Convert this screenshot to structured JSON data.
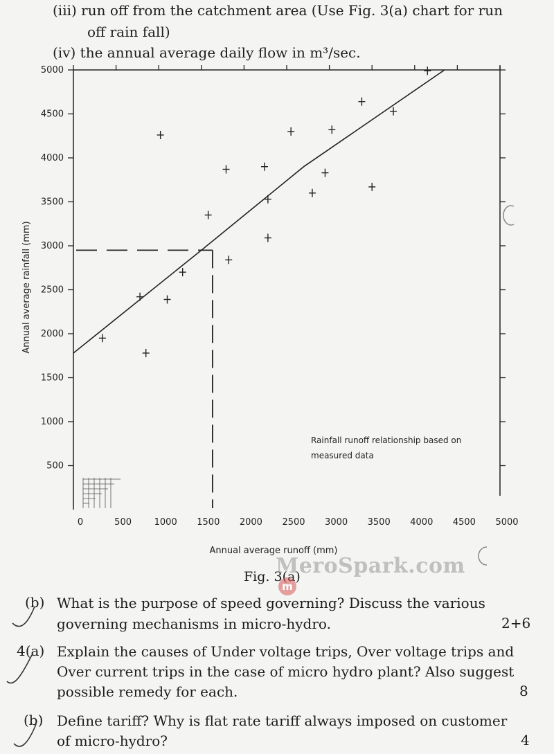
{
  "questions_top": {
    "item_iii_line1": "(iii) run off from the catchment area (Use Fig. 3(a) chart for run",
    "item_iii_line2": "off rain fall)",
    "item_iv": "(iv) the annual average daily flow in m³/sec."
  },
  "chart_data": {
    "type": "scatter",
    "xlabel": "Annual average runoff (mm)",
    "ylabel": "Annual average rainfall (mm)",
    "xlim": [
      0,
      5000
    ],
    "ylim": [
      0,
      5000
    ],
    "x_ticks": [
      0,
      500,
      1000,
      1500,
      2000,
      2500,
      3000,
      3500,
      4000,
      4500,
      5000
    ],
    "y_ticks": [
      500,
      1000,
      1500,
      2000,
      2500,
      3000,
      3500,
      4000,
      4500,
      5000
    ],
    "x_tick_labels": [
      "0",
      "500",
      "1000",
      "1500",
      "2000",
      "2500",
      "3000",
      "3500",
      "4000",
      "4500",
      "5000"
    ],
    "y_tick_labels": [
      "500",
      "1000",
      "1500",
      "2000",
      "2500",
      "3000",
      "3500",
      "4000",
      "4500",
      "5000"
    ],
    "annotation_line1": "Rainfall runoff relationship based on",
    "annotation_line2": "measured data",
    "grid": false,
    "points": [
      {
        "x": 340,
        "y": 1950
      },
      {
        "x": 850,
        "y": 1780
      },
      {
        "x": 780,
        "y": 2420
      },
      {
        "x": 1100,
        "y": 2390
      },
      {
        "x": 1280,
        "y": 2700
      },
      {
        "x": 1580,
        "y": 3350
      },
      {
        "x": 1820,
        "y": 2840
      },
      {
        "x": 1020,
        "y": 4260
      },
      {
        "x": 1790,
        "y": 3870
      },
      {
        "x": 2240,
        "y": 3900
      },
      {
        "x": 2280,
        "y": 3530
      },
      {
        "x": 2280,
        "y": 3090
      },
      {
        "x": 2550,
        "y": 4300
      },
      {
        "x": 2800,
        "y": 3600
      },
      {
        "x": 2950,
        "y": 3830
      },
      {
        "x": 3030,
        "y": 4320
      },
      {
        "x": 3380,
        "y": 4640
      },
      {
        "x": 3500,
        "y": 3670
      },
      {
        "x": 3750,
        "y": 4530
      },
      {
        "x": 4150,
        "y": 4990
      }
    ],
    "trend_line": {
      "x": [
        0,
        1500,
        2700,
        4350
      ],
      "y": [
        1780,
        2950,
        3900,
        5000
      ]
    },
    "reading_guide": {
      "x": 1550,
      "y": 2950
    }
  },
  "figure_caption": "Fig. 3(a)",
  "watermark": {
    "text": "MeroSpark.com",
    "logo_letter": "m"
  },
  "questions_bottom": [
    {
      "label": "(b)",
      "line1": "What is the purpose of speed governing? Discuss the various",
      "line2": "governing mechanisms in micro-hydro.",
      "marks": "2+6"
    },
    {
      "label": "4(a)",
      "line1": "Explain the causes of Under voltage trips, Over voltage trips and",
      "line2": "Over current trips in the case of micro hydro plant? Also suggest",
      "line3": "possible remedy for each.",
      "marks": "8"
    },
    {
      "label": "(b)",
      "line1": "Define tariff? Why is flat rate tariff always imposed on customer",
      "line2": "of micro-hydro?",
      "marks": "4"
    }
  ]
}
